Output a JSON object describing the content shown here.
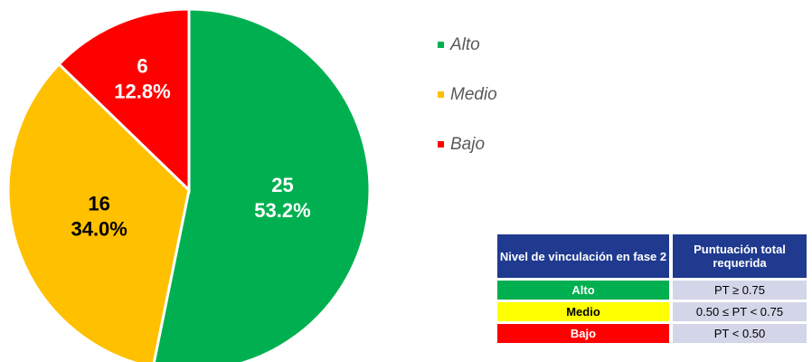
{
  "chart_data": {
    "type": "pie",
    "series": [
      {
        "name": "Alto",
        "color": "#00b050",
        "label_color": "#ffffff"
      },
      {
        "name": "Medio",
        "color": "#ffc000",
        "label_color": "#000000"
      },
      {
        "name": "Bajo",
        "color": "#ff0000",
        "label_color": "#ffffff"
      }
    ],
    "values": [
      25,
      16,
      6
    ],
    "percents": [
      53.2,
      34.0,
      12.8
    ],
    "percent_labels": [
      "53.2%",
      "34.0%",
      "12.8%"
    ],
    "legend": "right"
  },
  "table": {
    "header": [
      "Nivel de vinculación en fase 2",
      "Puntuación total requerida"
    ],
    "rows": [
      [
        "Alto",
        "PT ≥ 0.75"
      ],
      [
        "Medio",
        "0.50 ≤ PT < 0.75"
      ],
      [
        "Bajo",
        "PT < 0.50"
      ]
    ]
  }
}
